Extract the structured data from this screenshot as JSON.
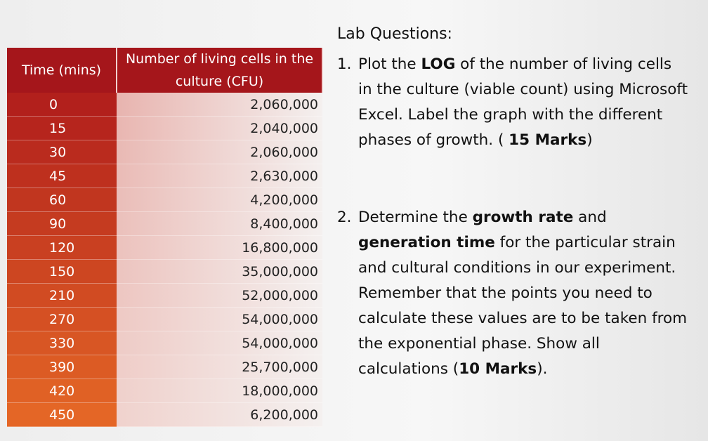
{
  "table": {
    "header": [
      "Time (mins)",
      "Number of living cells in the culture (CFU)"
    ],
    "rows": [
      [
        "0",
        "2,060,000"
      ],
      [
        "15",
        "2,040,000"
      ],
      [
        "30",
        "2,060,000"
      ],
      [
        "45",
        "2,630,000"
      ],
      [
        "60",
        "4,200,000"
      ],
      [
        "90",
        "8,400,000"
      ],
      [
        "120",
        "16,800,000"
      ],
      [
        "150",
        "35,000,000"
      ],
      [
        "210",
        "52,000,000"
      ],
      [
        "270",
        "54,000,000"
      ],
      [
        "330",
        "54,000,000"
      ],
      [
        "390",
        "25,700,000"
      ],
      [
        "420",
        "18,000,000"
      ],
      [
        "450",
        "6,200,000"
      ]
    ]
  },
  "questions_title": "Lab Questions:",
  "questions": [
    {
      "number": "1.",
      "segments": [
        {
          "text": "Plot the ",
          "bold": false
        },
        {
          "text": "LOG",
          "bold": true
        },
        {
          "text": " of the number of living cells in the culture (viable count) using Microsoft Excel. Label the graph with the different phases of growth. ( ",
          "bold": false
        },
        {
          "text": "15 Marks",
          "bold": true
        },
        {
          "text": ")",
          "bold": false
        }
      ]
    },
    {
      "number": "2.",
      "segments": [
        {
          "text": "Determine the ",
          "bold": false
        },
        {
          "text": "growth rate",
          "bold": true
        },
        {
          "text": " and ",
          "bold": false
        },
        {
          "text": "generation time",
          "bold": true
        },
        {
          "text": " for the particular strain and cultural conditions in our experiment. Remember that the points you need to calculate these values are to be taken from the exponential phase. Show all calculations (",
          "bold": false
        },
        {
          "text": "10 Marks",
          "bold": true
        },
        {
          "text": ").",
          "bold": false
        }
      ]
    }
  ]
}
